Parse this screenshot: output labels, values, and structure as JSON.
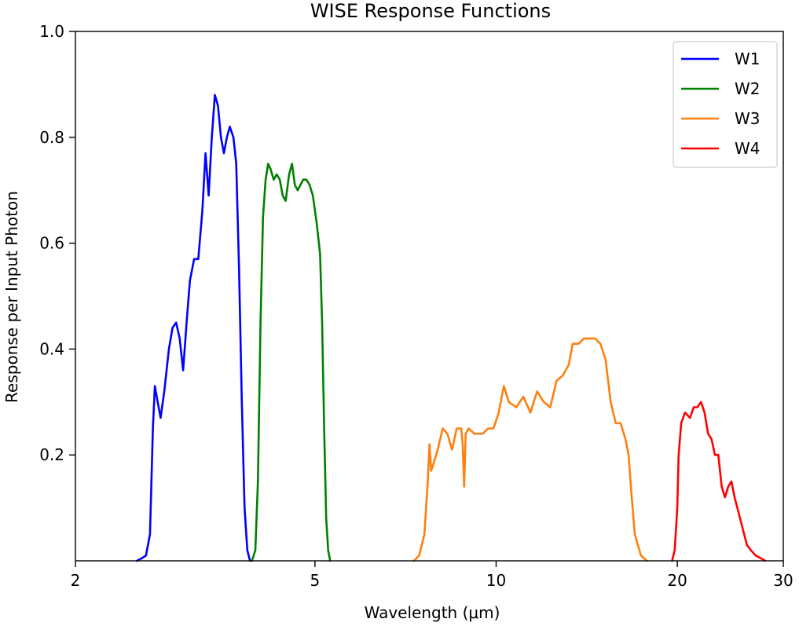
{
  "chart_data": {
    "type": "line",
    "title": "WISE Response Functions",
    "xlabel": "Wavelength (μm)",
    "ylabel": "Response per Input Photon",
    "xscale": "log",
    "xlim": [
      2,
      30
    ],
    "ylim": [
      0,
      1.0
    ],
    "x_ticks": [
      2,
      5,
      10,
      20,
      30
    ],
    "x_tick_labels": [
      "2",
      "5",
      "10",
      "20",
      "30"
    ],
    "y_ticks": [
      0.2,
      0.4,
      0.6,
      0.8,
      1.0
    ],
    "y_tick_labels": [
      "0.2",
      "0.4",
      "0.6",
      "0.8",
      "1.0"
    ],
    "grid": false,
    "legend_position": "top-right",
    "series": [
      {
        "name": "W1",
        "color": "#0000ff",
        "points": [
          [
            2.53,
            0.0
          ],
          [
            2.58,
            0.005
          ],
          [
            2.62,
            0.01
          ],
          [
            2.66,
            0.05
          ],
          [
            2.69,
            0.25
          ],
          [
            2.71,
            0.33
          ],
          [
            2.74,
            0.3
          ],
          [
            2.77,
            0.27
          ],
          [
            2.81,
            0.32
          ],
          [
            2.86,
            0.4
          ],
          [
            2.9,
            0.44
          ],
          [
            2.94,
            0.45
          ],
          [
            2.98,
            0.42
          ],
          [
            3.02,
            0.36
          ],
          [
            3.06,
            0.45
          ],
          [
            3.1,
            0.53
          ],
          [
            3.15,
            0.57
          ],
          [
            3.2,
            0.57
          ],
          [
            3.25,
            0.66
          ],
          [
            3.29,
            0.77
          ],
          [
            3.33,
            0.69
          ],
          [
            3.37,
            0.8
          ],
          [
            3.41,
            0.88
          ],
          [
            3.45,
            0.86
          ],
          [
            3.49,
            0.8
          ],
          [
            3.53,
            0.77
          ],
          [
            3.57,
            0.8
          ],
          [
            3.61,
            0.82
          ],
          [
            3.66,
            0.8
          ],
          [
            3.7,
            0.75
          ],
          [
            3.74,
            0.55
          ],
          [
            3.78,
            0.3
          ],
          [
            3.82,
            0.1
          ],
          [
            3.86,
            0.02
          ],
          [
            3.9,
            0.0
          ]
        ]
      },
      {
        "name": "W2",
        "color": "#008000",
        "points": [
          [
            3.93,
            0.0
          ],
          [
            3.98,
            0.02
          ],
          [
            4.02,
            0.15
          ],
          [
            4.06,
            0.45
          ],
          [
            4.1,
            0.65
          ],
          [
            4.14,
            0.72
          ],
          [
            4.18,
            0.75
          ],
          [
            4.22,
            0.74
          ],
          [
            4.27,
            0.72
          ],
          [
            4.32,
            0.73
          ],
          [
            4.37,
            0.72
          ],
          [
            4.42,
            0.69
          ],
          [
            4.47,
            0.68
          ],
          [
            4.53,
            0.73
          ],
          [
            4.58,
            0.75
          ],
          [
            4.63,
            0.71
          ],
          [
            4.68,
            0.7
          ],
          [
            4.73,
            0.71
          ],
          [
            4.78,
            0.72
          ],
          [
            4.84,
            0.72
          ],
          [
            4.9,
            0.71
          ],
          [
            4.96,
            0.69
          ],
          [
            5.03,
            0.64
          ],
          [
            5.1,
            0.58
          ],
          [
            5.14,
            0.45
          ],
          [
            5.18,
            0.25
          ],
          [
            5.22,
            0.08
          ],
          [
            5.26,
            0.02
          ],
          [
            5.3,
            0.0
          ]
        ]
      },
      {
        "name": "W3",
        "color": "#ff7f0e",
        "points": [
          [
            7.3,
            0.0
          ],
          [
            7.45,
            0.01
          ],
          [
            7.6,
            0.05
          ],
          [
            7.7,
            0.15
          ],
          [
            7.75,
            0.22
          ],
          [
            7.8,
            0.17
          ],
          [
            7.9,
            0.19
          ],
          [
            8.0,
            0.21
          ],
          [
            8.15,
            0.25
          ],
          [
            8.3,
            0.24
          ],
          [
            8.45,
            0.21
          ],
          [
            8.6,
            0.25
          ],
          [
            8.75,
            0.25
          ],
          [
            8.8,
            0.22
          ],
          [
            8.85,
            0.14
          ],
          [
            8.9,
            0.24
          ],
          [
            9.0,
            0.25
          ],
          [
            9.2,
            0.24
          ],
          [
            9.5,
            0.24
          ],
          [
            9.7,
            0.25
          ],
          [
            9.9,
            0.25
          ],
          [
            10.1,
            0.28
          ],
          [
            10.3,
            0.33
          ],
          [
            10.5,
            0.3
          ],
          [
            10.8,
            0.29
          ],
          [
            11.1,
            0.31
          ],
          [
            11.4,
            0.28
          ],
          [
            11.7,
            0.32
          ],
          [
            12.0,
            0.3
          ],
          [
            12.3,
            0.29
          ],
          [
            12.6,
            0.34
          ],
          [
            12.9,
            0.35
          ],
          [
            13.2,
            0.37
          ],
          [
            13.4,
            0.41
          ],
          [
            13.7,
            0.41
          ],
          [
            14.0,
            0.42
          ],
          [
            14.3,
            0.42
          ],
          [
            14.6,
            0.42
          ],
          [
            14.9,
            0.41
          ],
          [
            15.2,
            0.38
          ],
          [
            15.5,
            0.3
          ],
          [
            15.8,
            0.26
          ],
          [
            16.1,
            0.26
          ],
          [
            16.4,
            0.23
          ],
          [
            16.6,
            0.2
          ],
          [
            16.8,
            0.12
          ],
          [
            17.0,
            0.05
          ],
          [
            17.4,
            0.01
          ],
          [
            17.8,
            0.0
          ]
        ]
      },
      {
        "name": "W4",
        "color": "#ff0000",
        "points": [
          [
            19.6,
            0.0
          ],
          [
            19.8,
            0.02
          ],
          [
            20.0,
            0.1
          ],
          [
            20.1,
            0.2
          ],
          [
            20.3,
            0.26
          ],
          [
            20.6,
            0.28
          ],
          [
            21.0,
            0.27
          ],
          [
            21.3,
            0.29
          ],
          [
            21.6,
            0.29
          ],
          [
            21.9,
            0.3
          ],
          [
            22.2,
            0.28
          ],
          [
            22.5,
            0.24
          ],
          [
            22.8,
            0.23
          ],
          [
            23.1,
            0.2
          ],
          [
            23.4,
            0.2
          ],
          [
            23.7,
            0.14
          ],
          [
            24.0,
            0.12
          ],
          [
            24.3,
            0.14
          ],
          [
            24.6,
            0.15
          ],
          [
            24.9,
            0.12
          ],
          [
            25.3,
            0.09
          ],
          [
            25.7,
            0.06
          ],
          [
            26.1,
            0.03
          ],
          [
            26.5,
            0.02
          ],
          [
            27.0,
            0.01
          ],
          [
            27.5,
            0.005
          ],
          [
            28.0,
            0.0
          ]
        ]
      }
    ]
  }
}
